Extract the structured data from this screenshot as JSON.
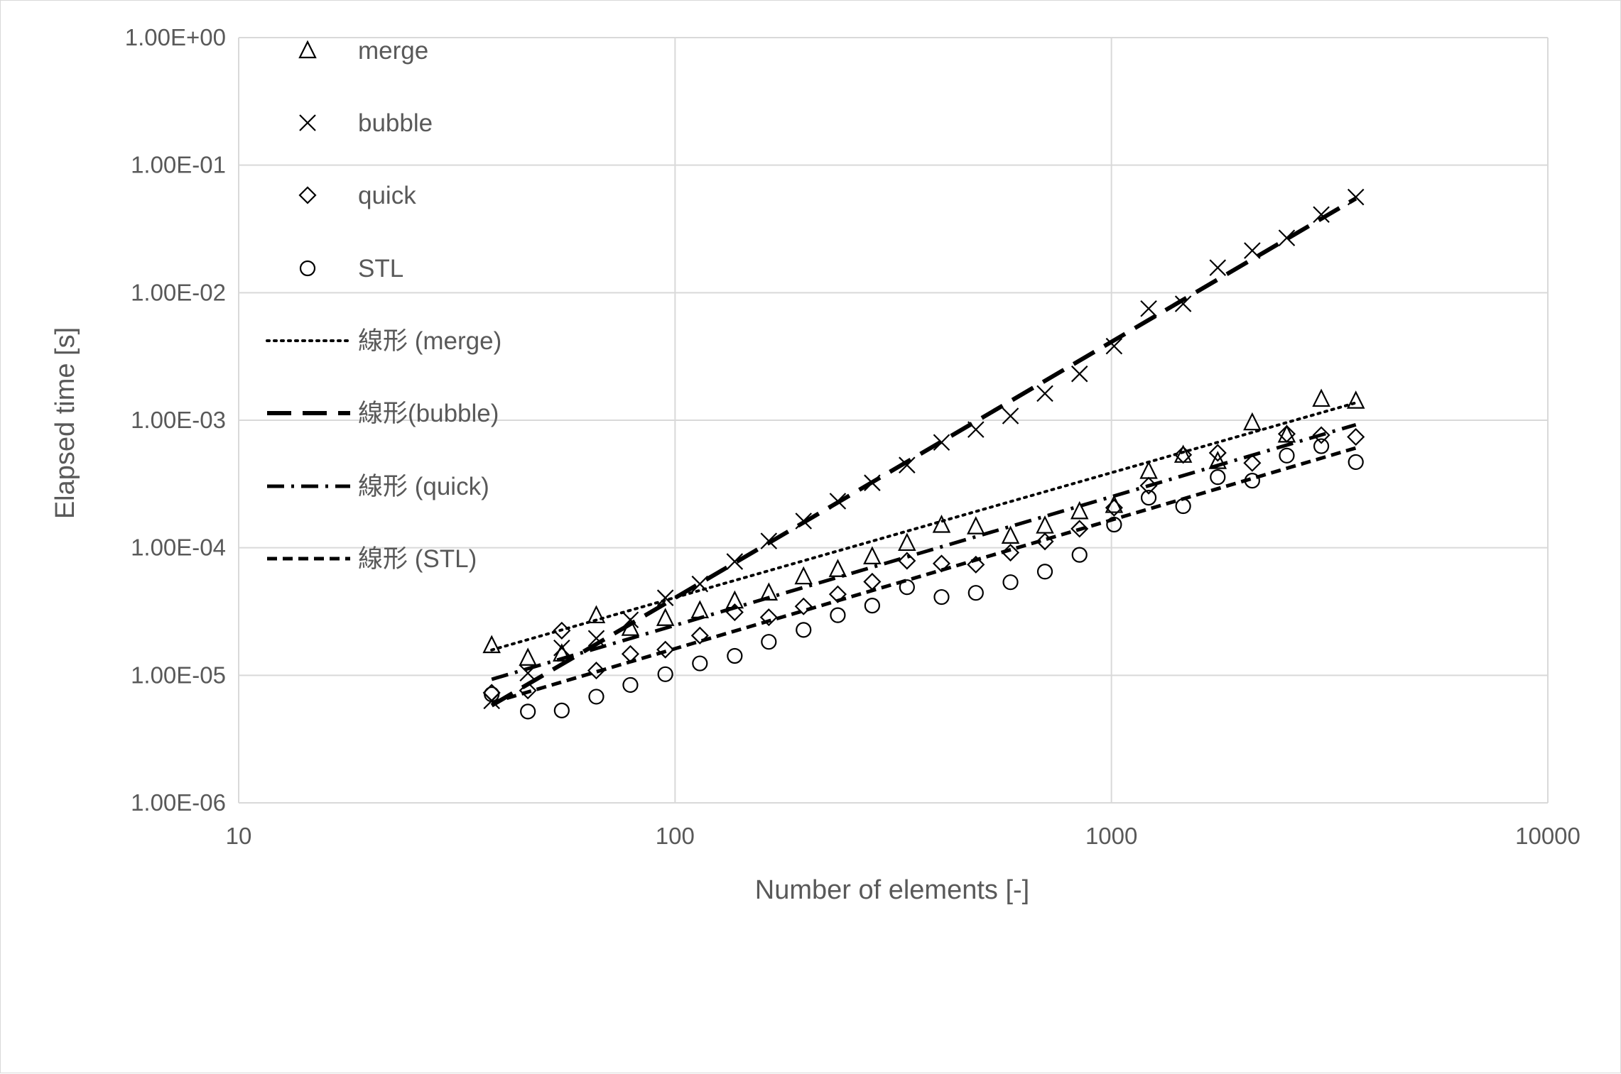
{
  "chart_data": {
    "type": "scatter",
    "title": "",
    "xlabel": "Number of elements [-]",
    "ylabel": "Elapsed time [s]",
    "x_scale": "log",
    "y_scale": "log",
    "xlim": [
      10,
      10000
    ],
    "ylim": [
      1e-06,
      1
    ],
    "x_ticks": [
      "10",
      "100",
      "1000",
      "10000"
    ],
    "y_ticks": [
      "1.00E-06",
      "1.00E-05",
      "1.00E-04",
      "1.00E-03",
      "1.00E-02",
      "1.00E-01",
      "1.00E+00"
    ],
    "grid": true,
    "legend_position": "top-left (inside plot)",
    "x": [
      38,
      46,
      55,
      66,
      79,
      95,
      114,
      137,
      164,
      197,
      236,
      283,
      340,
      408,
      489,
      587,
      704,
      845,
      1014,
      1217,
      1460,
      1752,
      2102,
      2522,
      3026,
      3631
    ],
    "series": [
      {
        "name": "merge",
        "marker": "triangle",
        "values": [
          1.72e-05,
          1.37e-05,
          1.48e-05,
          2.95e-05,
          2.35e-05,
          2.81e-05,
          3.23e-05,
          3.85e-05,
          4.45e-05,
          5.95e-05,
          6.8e-05,
          8.55e-05,
          0.000109,
          0.000151,
          0.000147,
          0.000124,
          0.000149,
          0.000193,
          0.000216,
          0.0004,
          0.000535,
          0.000478,
          0.00096,
          0.00077,
          0.00147,
          0.00142
        ]
      },
      {
        "name": "bubble",
        "marker": "x",
        "values": [
          6.3e-06,
          1.04e-05,
          1.64e-05,
          1.95e-05,
          2.72e-05,
          4.05e-05,
          5.2e-05,
          7.8e-05,
          0.000113,
          0.000162,
          0.000232,
          0.000323,
          0.000445,
          0.00067,
          0.000845,
          0.00108,
          0.00162,
          0.00231,
          0.00381,
          0.0075,
          0.00818,
          0.0157,
          0.0214,
          0.0269,
          0.041,
          0.0562
        ]
      },
      {
        "name": "quick",
        "marker": "diamond",
        "values": [
          7.3e-06,
          7.6e-06,
          2.24e-05,
          1.09e-05,
          1.47e-05,
          1.59e-05,
          2.05e-05,
          3.12e-05,
          2.85e-05,
          3.47e-05,
          4.32e-05,
          5.42e-05,
          7.9e-05,
          7.52e-05,
          7.38e-05,
          9.16e-05,
          0.000112,
          0.000141,
          0.000206,
          0.000307,
          0.000535,
          0.000555,
          0.000462,
          0.000781,
          0.000764,
          0.00074
        ]
      },
      {
        "name": "STL",
        "marker": "circle",
        "values": [
          7.1e-06,
          5.2e-06,
          5.3e-06,
          6.8e-06,
          8.4e-06,
          1.02e-05,
          1.24e-05,
          1.42e-05,
          1.83e-05,
          2.27e-05,
          2.96e-05,
          3.52e-05,
          4.91e-05,
          4.11e-05,
          4.43e-05,
          5.37e-05,
          6.5e-05,
          8.8e-05,
          0.000152,
          0.000247,
          0.000212,
          0.000358,
          0.000336,
          0.000528,
          0.000626,
          0.00047
        ]
      }
    ],
    "trendlines": [
      {
        "name": "線形 (merge)",
        "style": "dotted",
        "x": [
          38,
          3631
        ],
        "values": [
          1.58e-05,
          0.00137
        ]
      },
      {
        "name": "線形(bubble)",
        "style": "long-dash",
        "x": [
          38,
          3631
        ],
        "values": [
          5.8e-06,
          0.0548
        ]
      },
      {
        "name": "線形 (quick)",
        "style": "dash-dot",
        "x": [
          38,
          3631
        ],
        "values": [
          9.3e-06,
          0.000922
        ]
      },
      {
        "name": "線形 (STL)",
        "style": "short-dash",
        "x": [
          38,
          3631
        ],
        "values": [
          6.1e-06,
          0.000606
        ]
      }
    ]
  }
}
